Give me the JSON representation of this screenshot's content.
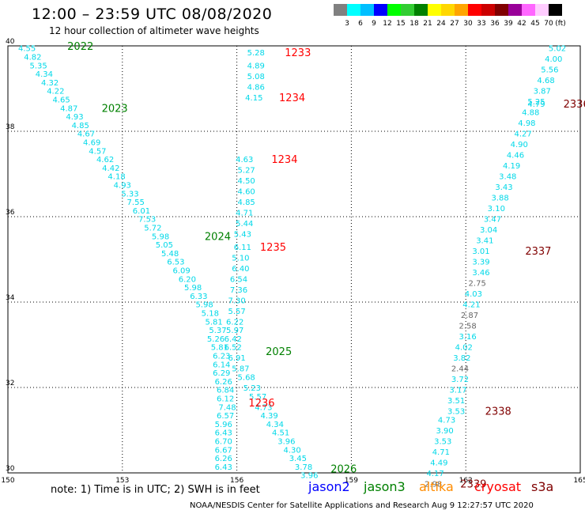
{
  "title": "12:00 – 23:59 UTC 08/08/2020",
  "subtitle": "12 hour collection of altimeter wave heights",
  "colorbar": {
    "unit": "(ft)",
    "labels": [
      "3",
      "6",
      "9",
      "12",
      "15",
      "18",
      "21",
      "24",
      "27",
      "30",
      "33",
      "36",
      "39",
      "42",
      "45",
      "70"
    ],
    "colors": [
      "#808080",
      "#00ffff",
      "#00bfff",
      "#0000ff",
      "#00ff00",
      "#32cd32",
      "#008000",
      "#ffff00",
      "#ffd700",
      "#ffa500",
      "#ff0000",
      "#cc0000",
      "#800000",
      "#990099",
      "#ff66ff",
      "#ffccff",
      "#000000"
    ]
  },
  "note": "note:  1) Time is in UTC;  2) SWH is in feet",
  "legend": [
    {
      "label": "jason2",
      "color": "#0000ff"
    },
    {
      "label": "jason3",
      "color": "#008000"
    },
    {
      "label": "altika",
      "color": "#ff8c00"
    },
    {
      "label": "cryosat",
      "color": "#ff0000"
    },
    {
      "label": "s3a",
      "color": "#800000"
    }
  ],
  "footer": "NOAA/NESDIS Center for Satellite Applications and Research    Aug  9 12:27:57 UTC 2020",
  "chart_data": {
    "type": "scatter",
    "xlim": [
      150,
      165
    ],
    "ylim": [
      30,
      40
    ],
    "x_ticks": [
      150,
      153,
      156,
      159,
      162,
      165
    ],
    "y_ticks": [
      30,
      32,
      34,
      36,
      38,
      40
    ],
    "grid": true,
    "wave_points": [
      {
        "x": 150.5,
        "y": 39.95,
        "v": "4.55"
      },
      {
        "x": 150.65,
        "y": 39.75,
        "v": "4.82"
      },
      {
        "x": 150.8,
        "y": 39.55,
        "v": "5.35"
      },
      {
        "x": 150.95,
        "y": 39.35,
        "v": "4.34"
      },
      {
        "x": 151.1,
        "y": 39.15,
        "v": "4.32"
      },
      {
        "x": 151.25,
        "y": 38.95,
        "v": "4.22"
      },
      {
        "x": 151.4,
        "y": 38.75,
        "v": "4.65"
      },
      {
        "x": 151.6,
        "y": 38.55,
        "v": "4.87"
      },
      {
        "x": 151.75,
        "y": 38.35,
        "v": "4.93"
      },
      {
        "x": 151.9,
        "y": 38.15,
        "v": "4.85"
      },
      {
        "x": 152.05,
        "y": 37.95,
        "v": "4.67"
      },
      {
        "x": 152.2,
        "y": 37.75,
        "v": "4.69"
      },
      {
        "x": 152.35,
        "y": 37.55,
        "v": "4.57"
      },
      {
        "x": 152.55,
        "y": 37.35,
        "v": "4.62"
      },
      {
        "x": 152.7,
        "y": 37.15,
        "v": "4.42"
      },
      {
        "x": 152.85,
        "y": 36.95,
        "v": "4.18"
      },
      {
        "x": 153.0,
        "y": 36.75,
        "v": "4.93"
      },
      {
        "x": 153.2,
        "y": 36.55,
        "v": "5.33"
      },
      {
        "x": 153.35,
        "y": 36.35,
        "v": "7.55"
      },
      {
        "x": 153.5,
        "y": 36.15,
        "v": "6.01"
      },
      {
        "x": 153.65,
        "y": 35.95,
        "v": "7.53"
      },
      {
        "x": 153.8,
        "y": 35.75,
        "v": "5.72"
      },
      {
        "x": 154.0,
        "y": 35.55,
        "v": "5.98"
      },
      {
        "x": 154.1,
        "y": 35.35,
        "v": "5.05"
      },
      {
        "x": 154.25,
        "y": 35.15,
        "v": "5.48"
      },
      {
        "x": 154.4,
        "y": 34.95,
        "v": "6.53"
      },
      {
        "x": 154.55,
        "y": 34.75,
        "v": "6.09"
      },
      {
        "x": 154.7,
        "y": 34.55,
        "v": "6.20"
      },
      {
        "x": 154.85,
        "y": 34.35,
        "v": "5.98"
      },
      {
        "x": 155.0,
        "y": 34.15,
        "v": "6.33"
      },
      {
        "x": 155.15,
        "y": 33.95,
        "v": "5.98"
      },
      {
        "x": 155.3,
        "y": 33.75,
        "v": "5.18"
      },
      {
        "x": 155.4,
        "y": 33.55,
        "v": "5.81"
      },
      {
        "x": 155.5,
        "y": 33.35,
        "v": "5.37"
      },
      {
        "x": 155.45,
        "y": 33.15,
        "v": "5.26"
      },
      {
        "x": 155.55,
        "y": 32.95,
        "v": "5.81"
      },
      {
        "x": 155.6,
        "y": 32.75,
        "v": "6.23"
      },
      {
        "x": 155.6,
        "y": 32.55,
        "v": "6.14"
      },
      {
        "x": 155.6,
        "y": 32.35,
        "v": "6.29"
      },
      {
        "x": 155.65,
        "y": 32.15,
        "v": "6.26"
      },
      {
        "x": 155.7,
        "y": 31.95,
        "v": "6.84"
      },
      {
        "x": 155.7,
        "y": 31.75,
        "v": "6.12"
      },
      {
        "x": 155.75,
        "y": 31.55,
        "v": "7.48"
      },
      {
        "x": 155.7,
        "y": 31.35,
        "v": "6.57"
      },
      {
        "x": 155.65,
        "y": 31.15,
        "v": "5.96"
      },
      {
        "x": 155.65,
        "y": 30.95,
        "v": "6.43"
      },
      {
        "x": 155.65,
        "y": 30.75,
        "v": "6.70"
      },
      {
        "x": 155.65,
        "y": 30.55,
        "v": "6.67"
      },
      {
        "x": 155.65,
        "y": 30.35,
        "v": "6.26"
      },
      {
        "x": 155.65,
        "y": 30.15,
        "v": "6.43"
      },
      {
        "x": 156.5,
        "y": 39.85,
        "v": "5.28"
      },
      {
        "x": 156.5,
        "y": 39.55,
        "v": "4.89"
      },
      {
        "x": 156.5,
        "y": 39.3,
        "v": "5.08"
      },
      {
        "x": 156.5,
        "y": 39.05,
        "v": "4.86"
      },
      {
        "x": 156.45,
        "y": 38.8,
        "v": "4.15"
      },
      {
        "x": 156.2,
        "y": 37.35,
        "v": "4.63"
      },
      {
        "x": 156.25,
        "y": 37.1,
        "v": "5.27"
      },
      {
        "x": 156.25,
        "y": 36.85,
        "v": "4.50"
      },
      {
        "x": 156.25,
        "y": 36.6,
        "v": "4.60"
      },
      {
        "x": 156.25,
        "y": 36.35,
        "v": "4.85"
      },
      {
        "x": 156.2,
        "y": 36.1,
        "v": "4.71"
      },
      {
        "x": 156.2,
        "y": 35.85,
        "v": "5.44"
      },
      {
        "x": 156.15,
        "y": 35.6,
        "v": "5.43"
      },
      {
        "x": 156.15,
        "y": 35.3,
        "v": "6.11"
      },
      {
        "x": 156.1,
        "y": 35.05,
        "v": "5.10"
      },
      {
        "x": 156.1,
        "y": 34.8,
        "v": "6.40"
      },
      {
        "x": 156.05,
        "y": 34.55,
        "v": "6.54"
      },
      {
        "x": 156.05,
        "y": 34.3,
        "v": "7.36"
      },
      {
        "x": 156.0,
        "y": 34.05,
        "v": "7.30"
      },
      {
        "x": 156.0,
        "y": 33.8,
        "v": "5.57"
      },
      {
        "x": 155.95,
        "y": 33.55,
        "v": "6.22"
      },
      {
        "x": 155.95,
        "y": 33.35,
        "v": "5.97"
      },
      {
        "x": 155.9,
        "y": 33.15,
        "v": "6.42"
      },
      {
        "x": 155.9,
        "y": 32.95,
        "v": "6.52"
      },
      {
        "x": 156.0,
        "y": 32.7,
        "v": "6.91"
      },
      {
        "x": 156.1,
        "y": 32.45,
        "v": "5.87"
      },
      {
        "x": 156.25,
        "y": 32.25,
        "v": "5.68"
      },
      {
        "x": 156.4,
        "y": 32.0,
        "v": "5.23"
      },
      {
        "x": 156.55,
        "y": 31.8,
        "v": "5.57"
      },
      {
        "x": 156.7,
        "y": 31.55,
        "v": "4.73"
      },
      {
        "x": 156.85,
        "y": 31.35,
        "v": "4.39"
      },
      {
        "x": 157.0,
        "y": 31.15,
        "v": "4.34"
      },
      {
        "x": 157.15,
        "y": 30.95,
        "v": "4.51"
      },
      {
        "x": 157.3,
        "y": 30.75,
        "v": "3.96"
      },
      {
        "x": 157.45,
        "y": 30.55,
        "v": "4.30"
      },
      {
        "x": 157.6,
        "y": 30.35,
        "v": "3.45"
      },
      {
        "x": 157.75,
        "y": 30.15,
        "v": "3.78"
      },
      {
        "x": 157.9,
        "y": 29.95,
        "v": "3.96"
      },
      {
        "x": 164.4,
        "y": 39.95,
        "v": "5.02"
      },
      {
        "x": 164.3,
        "y": 39.7,
        "v": "4.00"
      },
      {
        "x": 164.2,
        "y": 39.45,
        "v": "5.56"
      },
      {
        "x": 164.1,
        "y": 39.2,
        "v": "4.68"
      },
      {
        "x": 164.0,
        "y": 38.95,
        "v": "3.87"
      },
      {
        "x": 163.85,
        "y": 38.7,
        "v": "5.25"
      },
      {
        "x": 163.85,
        "y": 38.65,
        "v": "4.79"
      },
      {
        "x": 163.7,
        "y": 38.45,
        "v": "4.88"
      },
      {
        "x": 163.6,
        "y": 38.2,
        "v": "4.98"
      },
      {
        "x": 163.5,
        "y": 37.95,
        "v": "4.27"
      },
      {
        "x": 163.4,
        "y": 37.7,
        "v": "4.90"
      },
      {
        "x": 163.3,
        "y": 37.45,
        "v": "4.46"
      },
      {
        "x": 163.2,
        "y": 37.2,
        "v": "4.19"
      },
      {
        "x": 163.1,
        "y": 36.95,
        "v": "3.48"
      },
      {
        "x": 163.0,
        "y": 36.7,
        "v": "3.43"
      },
      {
        "x": 162.9,
        "y": 36.45,
        "v": "3.88"
      },
      {
        "x": 162.8,
        "y": 36.2,
        "v": "3.10"
      },
      {
        "x": 162.7,
        "y": 35.95,
        "v": "3.47"
      },
      {
        "x": 162.6,
        "y": 35.7,
        "v": "3.04"
      },
      {
        "x": 162.5,
        "y": 35.45,
        "v": "3.41"
      },
      {
        "x": 162.4,
        "y": 35.2,
        "v": "3.01"
      },
      {
        "x": 162.4,
        "y": 34.95,
        "v": "3.39"
      },
      {
        "x": 162.4,
        "y": 34.7,
        "v": "3.46"
      },
      {
        "x": 162.3,
        "y": 34.45,
        "v": "2.75",
        "gray": true
      },
      {
        "x": 162.2,
        "y": 34.2,
        "v": "4.03"
      },
      {
        "x": 162.15,
        "y": 33.95,
        "v": "4.21"
      },
      {
        "x": 162.1,
        "y": 33.7,
        "v": "2.87",
        "gray": true
      },
      {
        "x": 162.05,
        "y": 33.45,
        "v": "2.58",
        "gray": true
      },
      {
        "x": 162.05,
        "y": 33.2,
        "v": "3.16"
      },
      {
        "x": 161.95,
        "y": 32.95,
        "v": "4.02"
      },
      {
        "x": 161.9,
        "y": 32.7,
        "v": "3.82"
      },
      {
        "x": 161.85,
        "y": 32.45,
        "v": "2.44",
        "gray": true
      },
      {
        "x": 161.85,
        "y": 32.2,
        "v": "3.72"
      },
      {
        "x": 161.8,
        "y": 31.95,
        "v": "3.17"
      },
      {
        "x": 161.75,
        "y": 31.7,
        "v": "3.51"
      },
      {
        "x": 161.75,
        "y": 31.45,
        "v": "3.53"
      },
      {
        "x": 161.5,
        "y": 31.25,
        "v": "4.73"
      },
      {
        "x": 161.45,
        "y": 31.0,
        "v": "3.90"
      },
      {
        "x": 161.4,
        "y": 30.75,
        "v": "3.53"
      },
      {
        "x": 161.35,
        "y": 30.5,
        "v": "4.71"
      },
      {
        "x": 161.3,
        "y": 30.25,
        "v": "4.49"
      },
      {
        "x": 161.2,
        "y": 30.0,
        "v": "4.17"
      },
      {
        "x": 161.15,
        "y": 29.75,
        "v": "2.98",
        "gray": true
      }
    ],
    "time_labels": [
      {
        "x": 151.9,
        "y": 40.0,
        "t": "2022",
        "sat": "jason3"
      },
      {
        "x": 152.8,
        "y": 38.55,
        "t": "2023",
        "sat": "jason3"
      },
      {
        "x": 155.5,
        "y": 35.55,
        "t": "2024",
        "sat": "jason3"
      },
      {
        "x": 157.1,
        "y": 32.85,
        "t": "2025",
        "sat": "jason3"
      },
      {
        "x": 158.8,
        "y": 30.1,
        "t": "2026",
        "sat": "jason3"
      },
      {
        "x": 157.6,
        "y": 39.85,
        "t": "1233",
        "sat": "cryosat"
      },
      {
        "x": 157.45,
        "y": 38.8,
        "t": "1234",
        "sat": "cryosat"
      },
      {
        "x": 157.25,
        "y": 37.35,
        "t": "1234",
        "sat": "cryosat"
      },
      {
        "x": 156.95,
        "y": 35.3,
        "t": "1235",
        "sat": "cryosat"
      },
      {
        "x": 156.65,
        "y": 31.65,
        "t": "1236",
        "sat": "cryosat"
      },
      {
        "x": 164.9,
        "y": 38.65,
        "t": "2336",
        "sat": "s3a"
      },
      {
        "x": 163.9,
        "y": 35.2,
        "t": "2337",
        "sat": "s3a"
      },
      {
        "x": 162.85,
        "y": 31.45,
        "t": "2338",
        "sat": "s3a"
      },
      {
        "x": 162.2,
        "y": 29.75,
        "t": "2339",
        "sat": "s3a"
      }
    ]
  }
}
